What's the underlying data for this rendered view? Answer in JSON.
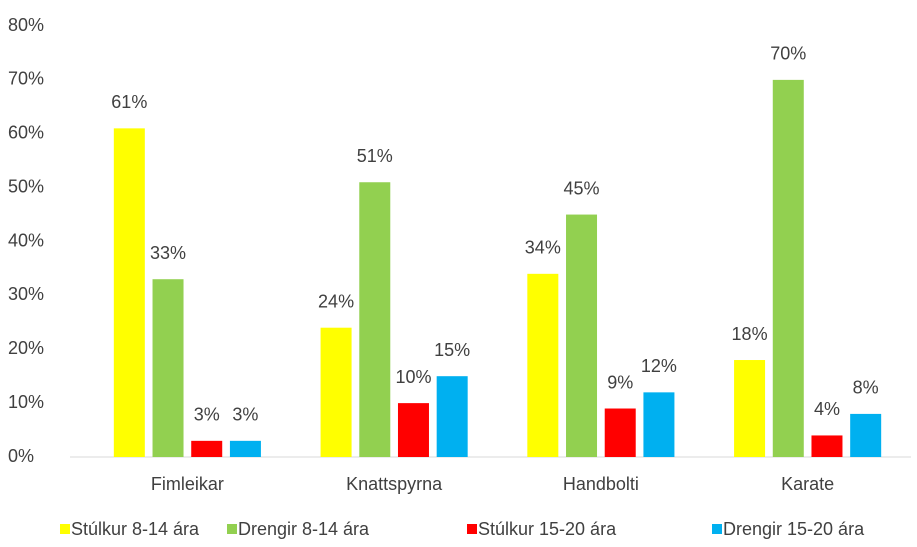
{
  "chart_data": {
    "type": "bar",
    "categories": [
      "Fimleikar",
      "Knattspyrna",
      "Handbolti",
      "Karate"
    ],
    "series": [
      {
        "name": "Stúlkur 8-14 ára",
        "color": "#ffff00",
        "values": [
          61,
          24,
          34,
          18
        ],
        "value_labels": [
          "61%",
          "24%",
          "34%",
          "18%"
        ]
      },
      {
        "name": "Drengir 8-14 ára",
        "color": "#92d050",
        "values": [
          33,
          51,
          45,
          70
        ],
        "value_labels": [
          "33%",
          "51%",
          "45%",
          "70%"
        ]
      },
      {
        "name": "Stúlkur 15-20 ára",
        "color": "#ff0000",
        "values": [
          3,
          10,
          9,
          4
        ],
        "value_labels": [
          "3%",
          "10%",
          "9%",
          "4%"
        ]
      },
      {
        "name": "Drengir 15-20 ára",
        "color": "#00b0f0",
        "values": [
          3,
          15,
          12,
          8
        ],
        "value_labels": [
          "3%",
          "15%",
          "12%",
          "8%"
        ]
      }
    ],
    "ylim": [
      0,
      80
    ],
    "yticks": [
      {
        "value": 0,
        "label": "0%"
      },
      {
        "value": 10,
        "label": "10%"
      },
      {
        "value": 20,
        "label": "20%"
      },
      {
        "value": 30,
        "label": "30%"
      },
      {
        "value": 40,
        "label": "40%"
      },
      {
        "value": 50,
        "label": "50%"
      },
      {
        "value": 60,
        "label": "60%"
      },
      {
        "value": 70,
        "label": "70%"
      },
      {
        "value": 80,
        "label": "80%"
      }
    ],
    "grid": false,
    "legend": "bottom"
  }
}
